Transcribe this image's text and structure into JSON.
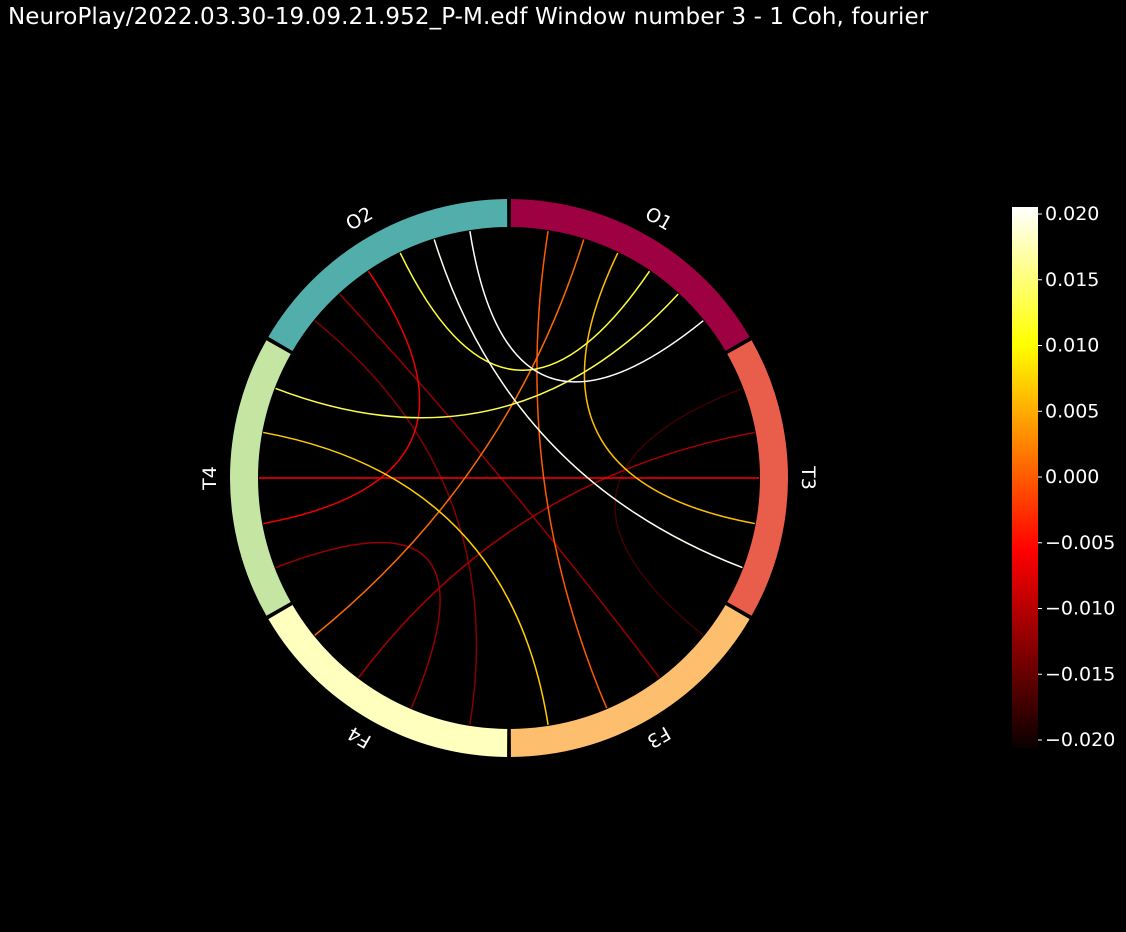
{
  "chart_data": {
    "type": "connectivity-circle",
    "title": "NeuroPlay/2022.03.30-19.09.21.952_P-M.edf Window number 3 - 1  Coh, fourier",
    "nodes": [
      {
        "name": "T3",
        "color": "#E95E4B"
      },
      {
        "name": "O1",
        "color": "#9E0142"
      },
      {
        "name": "O2",
        "color": "#52AEAA"
      },
      {
        "name": "T4",
        "color": "#C4E6A2"
      },
      {
        "name": "F4",
        "color": "#FFFFBE"
      },
      {
        "name": "F3",
        "color": "#FDBE6E"
      }
    ],
    "connections": [
      {
        "source": "O1",
        "target": "O2",
        "value": 0.02
      },
      {
        "source": "T3",
        "target": "O2",
        "value": 0.0195
      },
      {
        "source": "O1",
        "target": "T4",
        "value": 0.013
      },
      {
        "source": "O1",
        "target": "O2",
        "value": 0.012
      },
      {
        "source": "F3",
        "target": "T4",
        "value": 0.007
      },
      {
        "source": "T3",
        "target": "O1",
        "value": 0.006
      },
      {
        "source": "F4",
        "target": "O1",
        "value": 0.001
      },
      {
        "source": "F3",
        "target": "O1",
        "value": 0.0
      },
      {
        "source": "T3",
        "target": "T4",
        "value": -0.006
      },
      {
        "source": "T4",
        "target": "O2",
        "value": -0.007
      },
      {
        "source": "F4",
        "target": "T3",
        "value": -0.011
      },
      {
        "source": "F3",
        "target": "O2",
        "value": -0.012
      },
      {
        "source": "F4",
        "target": "T4",
        "value": -0.012
      },
      {
        "source": "F4",
        "target": "O2",
        "value": -0.013
      },
      {
        "source": "F3",
        "target": "T3",
        "value": -0.017
      }
    ],
    "colorbar": {
      "colormap": "hot",
      "vmin": -0.02,
      "vmax": 0.02,
      "ticks": [
        "0.020",
        "0.015",
        "0.010",
        "0.005",
        "0.000",
        "−0.005",
        "−0.010",
        "−0.015",
        "−0.020"
      ]
    },
    "background": "#000000",
    "label_color": "#ffffff"
  }
}
